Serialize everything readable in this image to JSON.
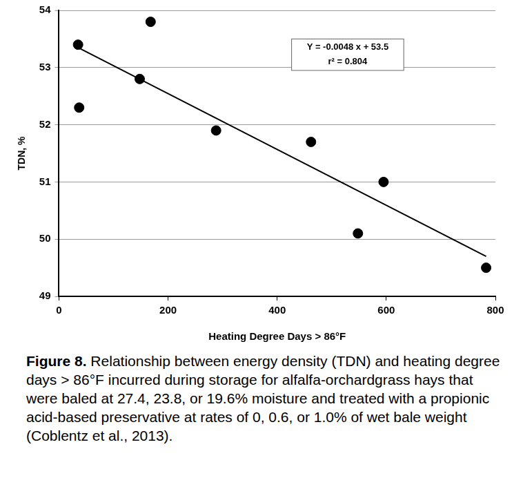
{
  "chart_data": {
    "type": "scatter",
    "x_label": "Heating Degree Days > 86°F",
    "y_label": "TDN, %",
    "annotations": [
      "Y = -0.0048 x + 53.5",
      "r² = 0.804"
    ],
    "caption": "Figure 8. Relationship between energy density (TDN) and heating degree days > 86°F incurred during storage for alfalfa-orchardgrass hays that were baled at 27.4, 23.8, or 19.6% moisture and treated with a propionic acid-based preservative at rates of 0, 0.6, or 1.0% of wet bale weight (Coblentz et al., 2013).",
    "series": [
      {
        "type": "scatter",
        "marker": "circle",
        "color": "#000000",
        "x": [
          35,
          37,
          148,
          168,
          288,
          462,
          548,
          595,
          783
        ],
        "values": [
          53.4,
          52.3,
          52.8,
          53.8,
          51.9,
          51.7,
          50.1,
          51.0,
          49.5
        ]
      },
      {
        "type": "line",
        "line_style": "solid",
        "color": "#000000",
        "x": [
          35,
          783
        ],
        "values": [
          53.35,
          49.7
        ]
      }
    ],
    "xlim": [
      0,
      800
    ],
    "xticks": [
      0,
      200,
      400,
      600,
      800
    ],
    "ylim": [
      49,
      54
    ],
    "yticks": [
      49,
      50,
      51,
      52,
      53,
      54
    ],
    "grid": true
  }
}
